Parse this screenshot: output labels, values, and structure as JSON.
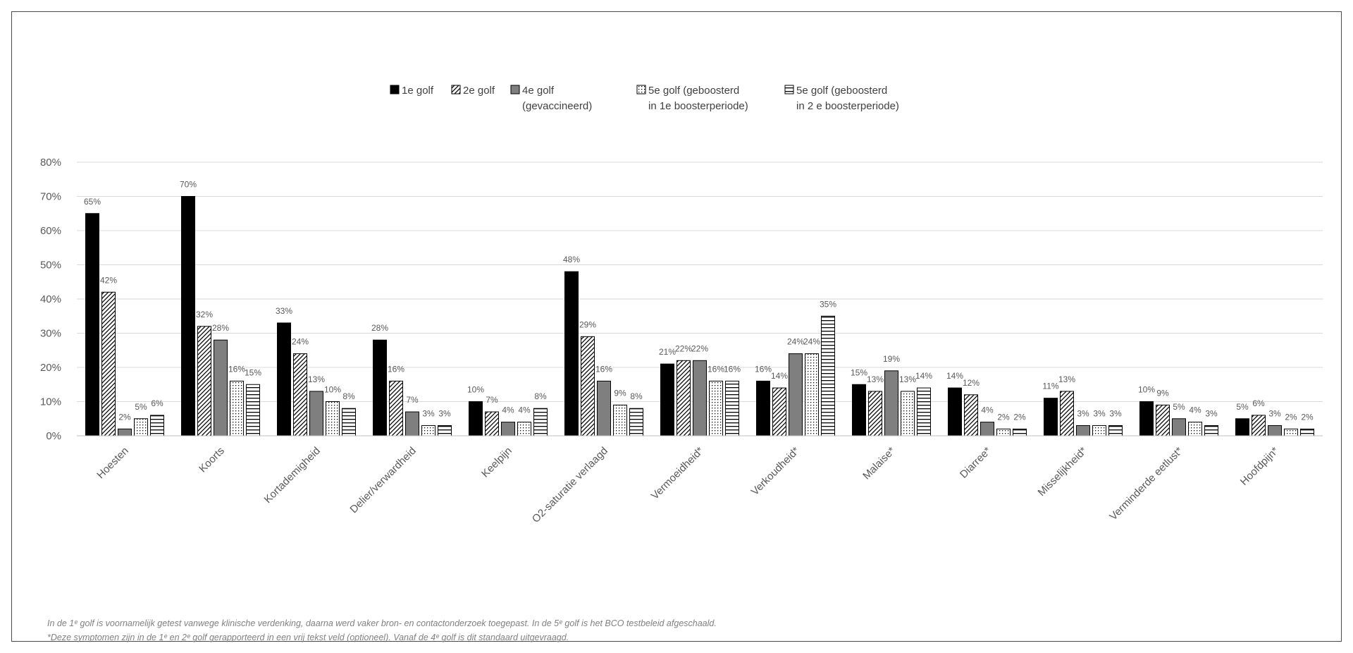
{
  "chart_data": {
    "type": "bar",
    "title": "",
    "xlabel": "",
    "ylabel": "",
    "ylim": [
      0,
      80
    ],
    "y_ticks": [
      "0%",
      "10%",
      "20%",
      "30%",
      "40%",
      "50%",
      "60%",
      "70%",
      "80%"
    ],
    "grid": true,
    "legend_position": "top",
    "categories": [
      "Hoesten",
      "Koorts",
      "Kortademigheid",
      "Delier/verwardheid",
      "Keelpijn",
      "O2-saturatie verlaagd",
      "Vermoeidheid*",
      "Verkoudheid*",
      "Malaise*",
      "Diarree*",
      "Misselijkheid*",
      "Verminderde eetlust*",
      "Hoofdpijn*"
    ],
    "series": [
      {
        "name": "1e golf",
        "legend_lines": [
          "1e golf"
        ],
        "pattern": "solid",
        "values": [
          65,
          70,
          33,
          28,
          10,
          48,
          21,
          16,
          15,
          14,
          11,
          10,
          5
        ],
        "labels": [
          "65%",
          "70%",
          "33%",
          "28%",
          "10%",
          "48%",
          "21%",
          "16%",
          "15%",
          "14%",
          "11%",
          "10%",
          "5%"
        ]
      },
      {
        "name": "2e golf",
        "legend_lines": [
          "2e golf"
        ],
        "pattern": "diagonal",
        "values": [
          42,
          32,
          24,
          16,
          7,
          29,
          22,
          14,
          13,
          12,
          13,
          9,
          6
        ],
        "labels": [
          "42%",
          "32%",
          "24%",
          "16%",
          "7%",
          "29%",
          "22%",
          "14%",
          "13%",
          "12%",
          "13%",
          "9%",
          "6%"
        ]
      },
      {
        "name": "4e golf (gevaccineerd)",
        "legend_lines": [
          "4e golf",
          "(gevaccineerd)"
        ],
        "pattern": "gray",
        "values": [
          2,
          28,
          13,
          7,
          4,
          16,
          22,
          24,
          19,
          4,
          3,
          5,
          3
        ],
        "labels": [
          "2%",
          "28%",
          "13%",
          "7%",
          "4%",
          "16%",
          "22%",
          "24%",
          "19%",
          "4%",
          "3%",
          "5%",
          "3%"
        ]
      },
      {
        "name": "5e golf (geboosterd in 1e boosterperiode)",
        "legend_lines": [
          "5e golf (geboosterd",
          "in 1e boosterperiode)"
        ],
        "pattern": "dots",
        "values": [
          5,
          16,
          10,
          3,
          4,
          9,
          16,
          24,
          13,
          2,
          3,
          4,
          2
        ],
        "labels": [
          "5%",
          "16%",
          "10%",
          "3%",
          "4%",
          "9%",
          "16%",
          "24%",
          "13%",
          "2%",
          "3%",
          "4%",
          "2%"
        ]
      },
      {
        "name": "5e golf (geboosterd in 2e boosterperiode)",
        "legend_lines": [
          "5e golf (geboosterd",
          "in 2 e boosterperiode)"
        ],
        "pattern": "hlines",
        "values": [
          6,
          15,
          8,
          3,
          8,
          8,
          16,
          35,
          14,
          2,
          3,
          3,
          2
        ],
        "labels": [
          "6%",
          "15%",
          "8%",
          "3%",
          "8%",
          "8%",
          "16%",
          "35%",
          "14%",
          "2%",
          "3%",
          "3%",
          "2%"
        ]
      }
    ]
  },
  "footnotes": {
    "line1": "In de 1ᵉ golf is voornamelijk getest vanwege klinische verdenking, daarna werd vaker bron- en contactonderzoek toegepast. In de 5ᵉ golf is het BCO testbeleid afgeschaald.",
    "line2": "*Deze symptomen zijn in de 1ᵉ en 2ᵉ golf gerapporteerd in een vrij tekst veld (optioneel). Vanaf de 4ᵉ golf is dit standaard uitgevraagd."
  }
}
